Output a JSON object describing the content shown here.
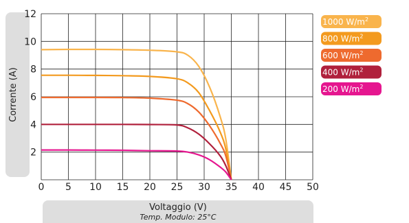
{
  "chart_data": {
    "type": "line",
    "ylabel": "Corrente (A)",
    "xlabel": "Voltaggio (V)",
    "subtitle": "Temp. Modulo: 25°C",
    "xlim": [
      0,
      50
    ],
    "ylim": [
      0,
      12
    ],
    "x_ticks": [
      "0",
      "5",
      "10",
      "15",
      "20",
      "25",
      "30",
      "35",
      "40",
      "45",
      "50"
    ],
    "y_ticks": [
      "2",
      "4",
      "6",
      "8",
      "10",
      "12"
    ],
    "grid": true,
    "legend_position": "right",
    "series": [
      {
        "name": "1000 W/m",
        "unit_superscript": "2",
        "color": "#F9B44C",
        "points": [
          [
            0,
            9.4
          ],
          [
            5,
            9.42
          ],
          [
            10,
            9.42
          ],
          [
            15,
            9.4
          ],
          [
            20,
            9.36
          ],
          [
            25,
            9.25
          ],
          [
            27,
            9.0
          ],
          [
            29,
            8.2
          ],
          [
            31,
            6.7
          ],
          [
            33,
            4.5
          ],
          [
            34,
            2.9
          ],
          [
            35,
            0.0
          ]
        ]
      },
      {
        "name": "800 W/m",
        "unit_superscript": "2",
        "color": "#F39A1E",
        "points": [
          [
            0,
            7.55
          ],
          [
            5,
            7.55
          ],
          [
            10,
            7.54
          ],
          [
            15,
            7.52
          ],
          [
            20,
            7.47
          ],
          [
            25,
            7.3
          ],
          [
            27,
            7.0
          ],
          [
            29,
            6.3
          ],
          [
            31,
            5.0
          ],
          [
            33,
            3.4
          ],
          [
            34,
            2.2
          ],
          [
            35,
            0.0
          ]
        ]
      },
      {
        "name": "600 W/m",
        "unit_superscript": "2",
        "color": "#EE6A2E",
        "points": [
          [
            0,
            5.95
          ],
          [
            5,
            5.95
          ],
          [
            10,
            5.95
          ],
          [
            15,
            5.94
          ],
          [
            20,
            5.9
          ],
          [
            25,
            5.75
          ],
          [
            27,
            5.5
          ],
          [
            29,
            4.9
          ],
          [
            31,
            3.9
          ],
          [
            33,
            2.6
          ],
          [
            34,
            1.7
          ],
          [
            35,
            0.0
          ]
        ]
      },
      {
        "name": "400 W/m",
        "unit_superscript": "2",
        "color": "#B0203C",
        "points": [
          [
            0,
            4.0
          ],
          [
            5,
            4.0
          ],
          [
            10,
            4.0
          ],
          [
            15,
            4.0
          ],
          [
            20,
            3.99
          ],
          [
            25,
            3.96
          ],
          [
            27,
            3.75
          ],
          [
            29,
            3.3
          ],
          [
            31,
            2.6
          ],
          [
            33,
            1.7
          ],
          [
            34,
            1.0
          ],
          [
            35,
            0.0
          ]
        ]
      },
      {
        "name": "200 W/m",
        "unit_superscript": "2",
        "color": "#E5168F",
        "points": [
          [
            0,
            2.15
          ],
          [
            5,
            2.15
          ],
          [
            10,
            2.14
          ],
          [
            15,
            2.13
          ],
          [
            20,
            2.1
          ],
          [
            25,
            2.08
          ],
          [
            27,
            2.0
          ],
          [
            29,
            1.8
          ],
          [
            31,
            1.45
          ],
          [
            33,
            0.9
          ],
          [
            34,
            0.55
          ],
          [
            35,
            0.0
          ]
        ]
      }
    ]
  }
}
